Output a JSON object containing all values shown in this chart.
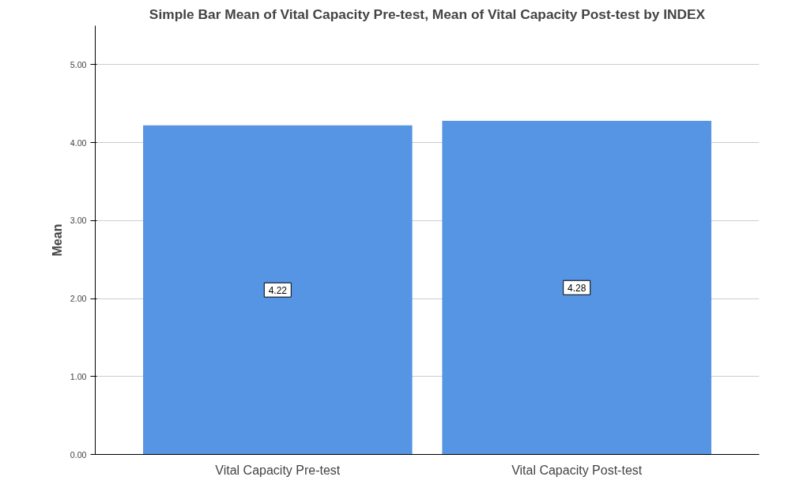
{
  "chart_data": {
    "type": "bar",
    "title": "Simple Bar Mean of Vital Capacity Pre-test, Mean of Vital Capacity Post-test by INDEX",
    "ylabel": "Mean",
    "categories": [
      "Vital Capacity Pre-test",
      "Vital Capacity Post-test"
    ],
    "values": [
      4.22,
      4.28
    ],
    "color": "#5595e3",
    "ylim": [
      0,
      5.5
    ],
    "yticks": [
      {
        "value": 0,
        "label": "0.00"
      },
      {
        "value": 1,
        "label": "1.00"
      },
      {
        "value": 2,
        "label": "2.00"
      },
      {
        "value": 3,
        "label": "3.00"
      },
      {
        "value": 4,
        "label": "4.00"
      },
      {
        "value": 5,
        "label": "5.00"
      }
    ],
    "grid": "y",
    "data_labels": true
  }
}
